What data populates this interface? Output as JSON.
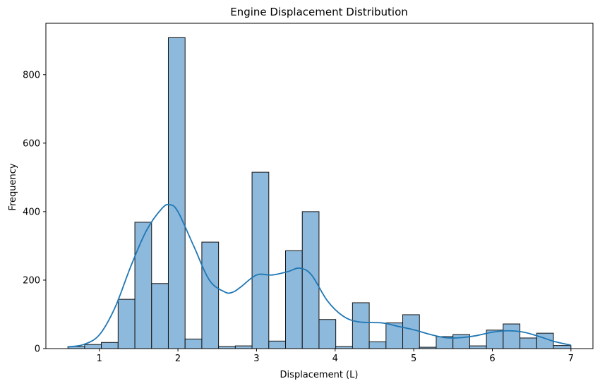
{
  "chart_data": {
    "type": "bar",
    "title": "Engine Displacement Distribution",
    "xlabel": "Displacement (L)",
    "ylabel": "Frequency",
    "xlim": [
      0.32,
      7.28
    ],
    "ylim": [
      0,
      950
    ],
    "xticks": [
      1,
      2,
      3,
      4,
      5,
      6,
      7
    ],
    "yticks": [
      0,
      200,
      400,
      600,
      800
    ],
    "bin_edges": [
      0.6,
      0.813,
      1.026,
      1.239,
      1.452,
      1.665,
      1.878,
      2.091,
      2.304,
      2.517,
      2.73,
      2.943,
      3.156,
      3.369,
      3.582,
      3.795,
      4.008,
      4.221,
      4.434,
      4.647,
      4.86,
      5.073,
      5.286,
      5.499,
      5.712,
      5.925,
      6.138,
      6.351,
      6.564,
      6.777,
      7.0
    ],
    "counts": [
      6,
      12,
      18,
      144,
      369,
      190,
      908,
      28,
      311,
      6,
      8,
      515,
      22,
      286,
      400,
      85,
      6,
      134,
      20,
      75,
      99,
      4,
      35,
      41,
      8,
      54,
      72,
      31,
      45,
      9
    ],
    "kde": {
      "x": [
        0.6,
        0.8,
        1.0,
        1.2,
        1.4,
        1.6,
        1.8,
        1.9,
        2.0,
        2.2,
        2.4,
        2.6,
        2.7,
        2.8,
        3.0,
        3.2,
        3.4,
        3.55,
        3.7,
        3.9,
        4.1,
        4.3,
        4.6,
        4.8,
        5.0,
        5.2,
        5.4,
        5.6,
        5.8,
        6.0,
        6.2,
        6.4,
        6.6,
        6.8,
        7.0
      ],
      "y": [
        5,
        12,
        40,
        120,
        240,
        345,
        410,
        420,
        400,
        300,
        200,
        165,
        165,
        180,
        215,
        215,
        225,
        235,
        215,
        140,
        95,
        78,
        75,
        65,
        55,
        42,
        32,
        32,
        38,
        48,
        52,
        48,
        35,
        20,
        10
      ]
    },
    "colors": {
      "bar_fill": "#8db9dc",
      "bar_edge": "#111111",
      "kde_line": "#1f77b4"
    }
  }
}
